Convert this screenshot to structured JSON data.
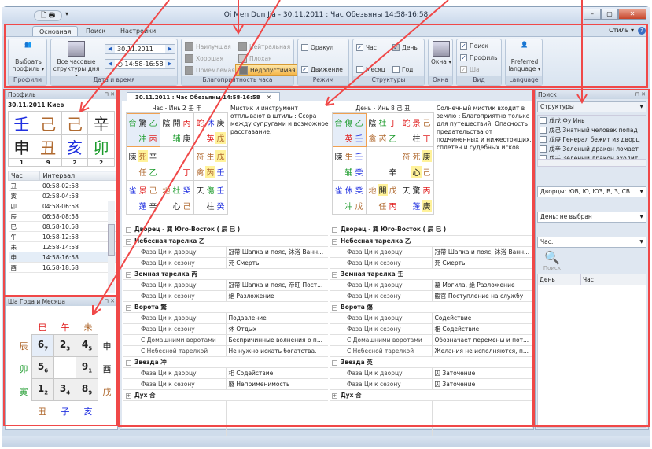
{
  "window": {
    "title": "Qi Men Dun Jia - 30.11.2011 : Час Обезьяны 14:58-16:58",
    "buttons": [
      "–",
      "▢",
      "✕"
    ]
  },
  "ribbon": {
    "tabs": [
      "Основная",
      "Поиск",
      "Настройки"
    ],
    "style_label": "Стиль",
    "profiles": {
      "button": "Выбрать профиль ▾",
      "label": "Профили"
    },
    "datetime": {
      "button": "Все часовые структуры дня ▾",
      "date": "30.11.2011",
      "time": "14:58-16:58",
      "label": "Дата и время"
    },
    "favor": {
      "items": [
        "Наилучшая",
        "Хорошая",
        "Приемлемая",
        "Нейтральная",
        "Плохая",
        "Недопустимая"
      ],
      "selected": "Недопустимая",
      "label": "Благоприятность часа"
    },
    "mode": {
      "oracle": "Оракул",
      "oracle_checked": false,
      "movement": "Движение",
      "movement_checked": true,
      "label": "Режим"
    },
    "structures": {
      "hour": "Час",
      "day": "День",
      "month": "Месяц",
      "year": "Год",
      "label": "Структуры"
    },
    "windows": {
      "button": "Окна ▾",
      "label": "Окна"
    },
    "view": {
      "search": "Поиск",
      "profile": "Профиль",
      "sha": "Ша",
      "label": "Вид"
    },
    "language": {
      "button": "Preferred language ▾",
      "label": "Language"
    },
    "accent": "#f5b342"
  },
  "profile": {
    "title": "Профиль",
    "header": "30.11.2011 Киев",
    "stems": [
      [
        "壬",
        "b"
      ],
      [
        "己",
        "o"
      ],
      [
        "己",
        "o"
      ],
      [
        "辛",
        "k"
      ]
    ],
    "branches": [
      [
        "申",
        "k"
      ],
      [
        "丑",
        "o"
      ],
      [
        "亥",
        "b"
      ],
      [
        "卯",
        "g"
      ]
    ],
    "numbers": [
      "1",
      "9",
      "2",
      "2"
    ],
    "columns": [
      "Час",
      "Интервал"
    ],
    "hours": [
      [
        "丑",
        "00:58-02:58"
      ],
      [
        "寅",
        "02:58-04:58"
      ],
      [
        "卯",
        "04:58-06:58"
      ],
      [
        "辰",
        "06:58-08:58"
      ],
      [
        "巳",
        "08:58-10:58"
      ],
      [
        "午",
        "10:58-12:58"
      ],
      [
        "未",
        "12:58-14:58"
      ],
      [
        "申",
        "14:58-16:58"
      ],
      [
        "酉",
        "16:58-18:58"
      ]
    ],
    "selected_hour": "申"
  },
  "sha": {
    "title": "Ша Года и Месяца",
    "top": [
      [
        "巳",
        "r"
      ],
      [
        "午",
        "r"
      ],
      [
        "未",
        "o"
      ]
    ],
    "bottom": [
      [
        "丑",
        "o"
      ],
      [
        "子",
        "b"
      ],
      [
        "亥",
        "b"
      ]
    ],
    "left": [
      [
        "辰",
        "o"
      ],
      [
        "卯",
        "g"
      ],
      [
        "寅",
        "g"
      ]
    ],
    "right": [
      [
        "申",
        "k"
      ],
      [
        "酉",
        "k"
      ],
      [
        "戌",
        "o"
      ]
    ],
    "grid": [
      [
        [
          "6",
          "7"
        ],
        [
          "2",
          "3"
        ],
        [
          "4",
          "5"
        ]
      ],
      [
        [
          "5",
          "6"
        ],
        [
          "",
          ""
        ],
        [
          "9",
          "1"
        ]
      ],
      [
        [
          "1",
          "2"
        ],
        [
          "3",
          "4"
        ],
        [
          "8",
          "9"
        ]
      ]
    ]
  },
  "document": {
    "tab": "30.11.2011 : Час Обезьяны 14:58-16:58",
    "close": "✕"
  },
  "charts": [
    {
      "caption": "Час - Инь 2 壬 申",
      "description": "Мистик и инструмент отплывают в штиль : Ссора между супругами и возможное расставание.",
      "cells": [
        {
          "top": [
            [
              "合",
              "g"
            ],
            [
              "驚",
              "k"
            ],
            [
              "乙",
              "g"
            ]
          ],
          "bot": [
            [
              "",
              ""
            ],
            [
              "冲",
              "g"
            ],
            [
              "丙",
              "r"
            ]
          ],
          "hl": true
        },
        {
          "top": [
            [
              "陰",
              "k"
            ],
            [
              "開",
              "k"
            ],
            [
              "丙",
              "r"
            ]
          ],
          "bot": [
            [
              "",
              ""
            ],
            [
              "辅",
              "g"
            ],
            [
              "庚",
              "k"
            ]
          ]
        },
        {
          "top": [
            [
              "蛇",
              "r"
            ],
            [
              "休",
              "b"
            ],
            [
              "庚",
              "k"
            ]
          ],
          "bot": [
            [
              "",
              ""
            ],
            [
              "英",
              "r"
            ],
            [
              "戊",
              "o",
              1
            ]
          ]
        },
        {
          "top": [
            [
              "陳",
              "k"
            ],
            [
              "死",
              "o",
              1
            ],
            [
              "辛",
              "k"
            ]
          ],
          "bot": [
            [
              "",
              ""
            ],
            [
              "任",
              "o"
            ],
            [
              "乙",
              "g"
            ]
          ]
        },
        {
          "top": [
            [
              "",
              ""
            ],
            [
              "",
              ""
            ],
            [
              "",
              ""
            ]
          ],
          "bot": [
            [
              "",
              ""
            ],
            [
              "",
              ""
            ],
            [
              "丁",
              "r"
            ]
          ]
        },
        {
          "top": [
            [
              "符",
              "o"
            ],
            [
              "生",
              "o"
            ],
            [
              "戊",
              "o",
              1
            ]
          ],
          "bot": [
            [
              "禽",
              "o"
            ],
            [
              "芮",
              "o",
              1
            ],
            [
              "壬",
              "b"
            ]
          ]
        },
        {
          "top": [
            [
              "雀",
              "b"
            ],
            [
              "景",
              "r"
            ],
            [
              "己",
              "o"
            ]
          ],
          "bot": [
            [
              "",
              ""
            ],
            [
              "蓬",
              "b"
            ],
            [
              "辛",
              "k"
            ]
          ]
        },
        {
          "top": [
            [
              "地",
              "o"
            ],
            [
              "杜",
              "g"
            ],
            [
              "癸",
              "b"
            ]
          ],
          "bot": [
            [
              "",
              ""
            ],
            [
              "心",
              "k"
            ],
            [
              "己",
              "o"
            ]
          ]
        },
        {
          "top": [
            [
              "天",
              "k"
            ],
            [
              "傷",
              "g"
            ],
            [
              "壬",
              "b"
            ]
          ],
          "bot": [
            [
              "",
              ""
            ],
            [
              "柱",
              "k"
            ],
            [
              "癸",
              "b"
            ]
          ]
        }
      ],
      "props": [
        {
          "s": "Дворец - 巽 Юго-Восток ( 辰 巳 )"
        },
        {
          "s": "Небесная тарелка  乙"
        },
        {
          "k": "Фаза Ци к дворцу",
          "v": "冠帶 Шапка и пояс, 沐浴 Ванн..."
        },
        {
          "k": "Фаза Ци к сезону",
          "v": "死 Смерть"
        },
        {
          "s": "Земная тарелка  丙"
        },
        {
          "k": "Фаза Ци к дворцу",
          "v": "冠帶 Шапка и пояс, 帝旺 Пост..."
        },
        {
          "k": "Фаза Ци к сезону",
          "v": "絶 Разложение"
        },
        {
          "s": "Ворота  驚"
        },
        {
          "k": "Фаза Ци к дворцу",
          "v": "Подавление"
        },
        {
          "k": "Фаза Ци к сезону",
          "v": "休 Отдых"
        },
        {
          "k": "С Домашними воротами",
          "v": "Беспричинные волнения о п..."
        },
        {
          "k": "С Небесной тарелкой",
          "v": "Не нужно искать богатства."
        },
        {
          "s": "Звезда  冲"
        },
        {
          "k": "Фаза Ци к дворцу",
          "v": "相 Содействие"
        },
        {
          "k": "Фаза Ци к сезону",
          "v": "廢 Неприменимость"
        },
        {
          "s": "Дух  合",
          "collapsed": true
        }
      ]
    },
    {
      "caption": "День - Инь 8 己 丑",
      "description": "Солнечный мистик входит в землю : Благоприятно только для путешествий. Опасность предательства от подчиненных и нижестоящих, сплетен и судебных исков.",
      "cells": [
        {
          "top": [
            [
              "合",
              "g"
            ],
            [
              "傷",
              "g"
            ],
            [
              "乙",
              "g"
            ]
          ],
          "bot": [
            [
              "",
              ""
            ],
            [
              "英",
              "r"
            ],
            [
              "壬",
              "b"
            ]
          ],
          "hl": true
        },
        {
          "top": [
            [
              "陰",
              "k"
            ],
            [
              "杜",
              "g"
            ],
            [
              "丁",
              "r"
            ]
          ],
          "bot": [
            [
              "禽",
              "o"
            ],
            [
              "芮",
              "o"
            ],
            [
              "乙",
              "g"
            ]
          ]
        },
        {
          "top": [
            [
              "蛇",
              "r"
            ],
            [
              "景",
              "r"
            ],
            [
              "己",
              "o"
            ]
          ],
          "bot": [
            [
              "",
              ""
            ],
            [
              "柱",
              "k"
            ],
            [
              "丁",
              "r"
            ]
          ]
        },
        {
          "top": [
            [
              "陳",
              "k"
            ],
            [
              "生",
              "o"
            ],
            [
              "壬",
              "b"
            ]
          ],
          "bot": [
            [
              "",
              ""
            ],
            [
              "辅",
              "g"
            ],
            [
              "癸",
              "b"
            ]
          ]
        },
        {
          "top": [
            [
              "",
              ""
            ],
            [
              "",
              ""
            ],
            [
              "",
              ""
            ]
          ],
          "bot": [
            [
              "",
              ""
            ],
            [
              "",
              ""
            ],
            [
              "辛",
              "k"
            ]
          ]
        },
        {
          "top": [
            [
              "符",
              "o"
            ],
            [
              "死",
              "o"
            ],
            [
              "庚",
              "k",
              1
            ]
          ],
          "bot": [
            [
              "",
              ""
            ],
            [
              "心",
              "k",
              1
            ],
            [
              "己",
              "o"
            ]
          ]
        },
        {
          "top": [
            [
              "雀",
              "b"
            ],
            [
              "休",
              "b"
            ],
            [
              "癸",
              "b"
            ]
          ],
          "bot": [
            [
              "",
              ""
            ],
            [
              "冲",
              "g"
            ],
            [
              "戊",
              "o"
            ]
          ]
        },
        {
          "top": [
            [
              "地",
              "o"
            ],
            [
              "開",
              "k",
              1
            ],
            [
              "戊",
              "o"
            ]
          ],
          "bot": [
            [
              "",
              ""
            ],
            [
              "任",
              "o"
            ],
            [
              "丙",
              "r"
            ]
          ]
        },
        {
          "top": [
            [
              "天",
              "k"
            ],
            [
              "驚",
              "k"
            ],
            [
              "丙",
              "r"
            ]
          ],
          "bot": [
            [
              "",
              ""
            ],
            [
              "蓬",
              "b"
            ],
            [
              "庚",
              "k",
              1
            ]
          ]
        }
      ],
      "props": [
        {
          "s": "Дворец - 巽 Юго-Восток ( 辰 巳 )"
        },
        {
          "s": "Небесная тарелка  乙"
        },
        {
          "k": "Фаза Ци к дворцу",
          "v": "冠帶 Шапка и пояс, 沐浴 Ванн..."
        },
        {
          "k": "Фаза Ци к сезону",
          "v": "死 Смерть"
        },
        {
          "s": "Земная тарелка  壬"
        },
        {
          "k": "Фаза Ци к дворцу",
          "v": "墓 Могила, 絶 Разложение"
        },
        {
          "k": "Фаза Ци к сезону",
          "v": "臨官 Поступление на службу"
        },
        {
          "s": "Ворота  傷"
        },
        {
          "k": "Фаза Ци к дворцу",
          "v": "Содействие"
        },
        {
          "k": "Фаза Ци к сезону",
          "v": "相 Содействие"
        },
        {
          "k": "С Домашними воротами",
          "v": "Обозначает перемены и пот..."
        },
        {
          "k": "С Небесной тарелкой",
          "v": "Желания не исполняются, п..."
        },
        {
          "s": "Звезда  英"
        },
        {
          "k": "Фаза Ци к дворцу",
          "v": "囚 Заточение"
        },
        {
          "k": "Фаза Ци к сезону",
          "v": "囚 Заточение"
        },
        {
          "s": "Дух  合",
          "collapsed": true
        }
      ]
    }
  ],
  "search": {
    "title": "Поиск",
    "category": "Структуры",
    "items": [
      "戊戊 Фу Инь",
      "戊己 Знатный человек попад",
      "戊庚 Генерал бежит из дворц",
      "戊辛 Зеленый дракон ломает",
      "戊壬 Зеленый дракон входит"
    ],
    "palaces": "Дворцы: ЮВ, Ю, ЮЗ, В, З, СВ...",
    "day": "День: не выбран",
    "hour": "Час:",
    "button": "Поиск",
    "columns": [
      "День",
      "Час"
    ]
  },
  "colors": {
    "g": "#1a9a2a",
    "r": "#e02020",
    "b": "#2030e0",
    "k": "#222222",
    "o": "#b06a30",
    "highlight": "#fff29a",
    "annotation": "#f04848"
  }
}
